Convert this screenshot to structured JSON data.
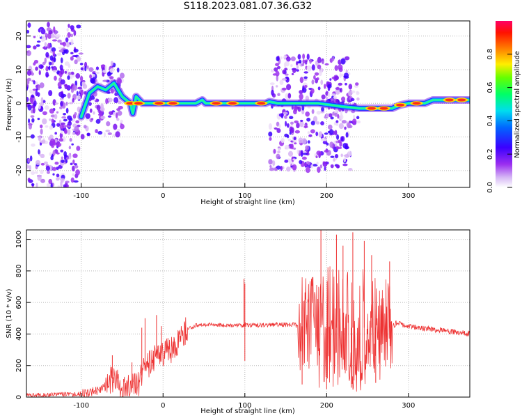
{
  "title": "S118.2023.081.07.36.G32",
  "colors": {
    "snr_line": "#ee3333",
    "colormap": [
      "#ffffff",
      "#e8d6f7",
      "#c088ee",
      "#8a2be2",
      "#4400ff",
      "#0033ff",
      "#00bbff",
      "#00ffaa",
      "#33ff00",
      "#aaff00",
      "#ffee00",
      "#ff8800",
      "#ff2200",
      "#ff0066"
    ]
  },
  "chart_data": [
    {
      "type": "heatmap",
      "xlabel": "Height of straight line (km)",
      "ylabel": "Frequency (Hz)",
      "xlim": [
        -167,
        375
      ],
      "ylim": [
        -25,
        24.5
      ],
      "x_ticks": [
        -100,
        0,
        100,
        200,
        300
      ],
      "y_ticks": [
        -20,
        -10,
        0,
        10,
        20
      ],
      "grid": true,
      "colorbar": {
        "label": "Normalized spectral amplitude",
        "range": [
          0,
          1
        ],
        "ticks": [
          0.0,
          0.2,
          0.4,
          0.6,
          0.8
        ]
      },
      "ridge": [
        [
          -100,
          -4
        ],
        [
          -90,
          3
        ],
        [
          -80,
          5
        ],
        [
          -70,
          4
        ],
        [
          -60,
          6
        ],
        [
          -50,
          2
        ],
        [
          -45,
          1
        ],
        [
          -40,
          0
        ],
        [
          -37,
          -3
        ],
        [
          -33,
          2
        ],
        [
          -25,
          0
        ],
        [
          -10,
          0
        ],
        [
          40,
          0
        ],
        [
          48,
          1
        ],
        [
          52,
          0
        ],
        [
          100,
          0
        ],
        [
          125,
          0
        ],
        [
          130,
          0.5
        ],
        [
          140,
          0
        ],
        [
          190,
          0
        ],
        [
          220,
          -1
        ],
        [
          240,
          -1.5
        ],
        [
          280,
          -1.5
        ],
        [
          290,
          -0.5
        ],
        [
          300,
          0
        ],
        [
          320,
          0
        ],
        [
          330,
          1
        ],
        [
          375,
          1
        ]
      ],
      "hotspots": [
        [
          -40,
          0
        ],
        [
          -30,
          0
        ],
        [
          -5,
          0
        ],
        [
          12,
          0
        ],
        [
          65,
          0
        ],
        [
          85,
          0
        ],
        [
          120,
          0
        ],
        [
          255,
          -1.5
        ],
        [
          270,
          -1.5
        ],
        [
          290,
          -0.5
        ],
        [
          310,
          0
        ],
        [
          350,
          1
        ],
        [
          365,
          1
        ]
      ],
      "scatter_regions": [
        [
          -167,
          -100,
          -25,
          24
        ],
        [
          -100,
          -50,
          -10,
          12
        ],
        [
          130,
          230,
          -20,
          14
        ],
        [
          200,
          240,
          -6,
          6
        ]
      ]
    },
    {
      "type": "line",
      "xlabel": "Height of straight line (km)",
      "ylabel": "SNR (10 * v/v)",
      "xlim": [
        -167,
        375
      ],
      "ylim": [
        0,
        1060
      ],
      "x_ticks": [
        -100,
        0,
        100,
        200,
        300
      ],
      "y_ticks": [
        0,
        200,
        400,
        600,
        800,
        1000
      ],
      "grid": true,
      "series": [
        {
          "profile": [
            [
              -167,
              10
            ],
            [
              -130,
              15
            ],
            [
              -100,
              20
            ],
            [
              -80,
              40
            ],
            [
              -70,
              70
            ],
            [
              -65,
              110
            ],
            [
              -60,
              120
            ],
            [
              -55,
              80
            ],
            [
              -50,
              50
            ],
            [
              -45,
              60
            ],
            [
              -40,
              80
            ],
            [
              -35,
              110
            ],
            [
              -30,
              90
            ],
            [
              -25,
              150
            ],
            [
              -20,
              200
            ],
            [
              -10,
              240
            ],
            [
              0,
              270
            ],
            [
              10,
              300
            ],
            [
              20,
              370
            ],
            [
              30,
              430
            ],
            [
              40,
              455
            ],
            [
              60,
              460
            ],
            [
              80,
              455
            ],
            [
              95,
              455
            ],
            [
              110,
              455
            ],
            [
              140,
              460
            ],
            [
              160,
              460
            ],
            [
              165,
              450
            ],
            [
              200,
              440
            ],
            [
              240,
              440
            ],
            [
              280,
              440
            ],
            [
              285,
              470
            ],
            [
              300,
              450
            ],
            [
              330,
              430
            ],
            [
              375,
              400
            ]
          ],
          "noise_bands": [
            [
              -167,
              -100,
              15
            ],
            [
              -100,
              -70,
              30
            ],
            [
              -70,
              -20,
              90
            ],
            [
              -20,
              30,
              90
            ],
            [
              30,
              97,
              12
            ],
            [
              97,
              103,
              18
            ],
            [
              103,
              165,
              15
            ],
            [
              165,
              190,
              320
            ],
            [
              190,
              250,
              420
            ],
            [
              250,
              280,
              330
            ],
            [
              280,
              375,
              18
            ]
          ],
          "spikes": [
            [
              -62,
              265
            ],
            [
              -38,
              220
            ],
            [
              -26,
              440
            ],
            [
              -22,
              500
            ],
            [
              -8,
              520
            ],
            [
              -2,
              450
            ],
            [
              99,
              750
            ],
            [
              100,
              720
            ],
            [
              193,
              1060
            ],
            [
              212,
              1030
            ],
            [
              220,
              960
            ],
            [
              232,
              1045
            ],
            [
              246,
              990
            ],
            [
              255,
              900
            ],
            [
              277,
              860
            ]
          ],
          "dips": [
            [
              100,
              230
            ],
            [
              170,
              80
            ],
            [
              200,
              50
            ],
            [
              230,
              60
            ],
            [
              260,
              90
            ]
          ]
        }
      ]
    }
  ]
}
